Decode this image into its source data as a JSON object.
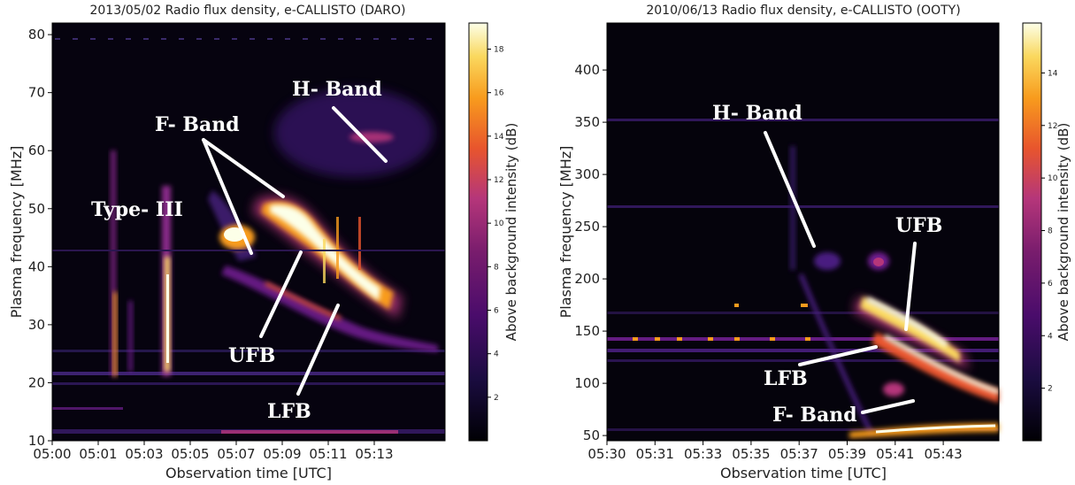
{
  "chart_data": [
    {
      "type": "heatmap",
      "title": "2013/05/02  Radio flux density, e-CALLISTO (DARO)",
      "xlabel": "Observation time [UTC]",
      "ylabel": "Plasma frequency [MHz]",
      "colorbar_label": "Above background intensity (dB)",
      "x_ticks": [
        "05:00",
        "05:01",
        "05:03",
        "05:05",
        "05:07",
        "05:09",
        "05:11",
        "05:13"
      ],
      "y_ticks": [
        10,
        20,
        30,
        40,
        50,
        60,
        70,
        80
      ],
      "colorbar_ticks": [
        2,
        4,
        6,
        8,
        10,
        12,
        14,
        16,
        18
      ],
      "ylim": [
        10,
        82
      ],
      "colormap": [
        "#000004",
        "#2b0f5c",
        "#6f1f8f",
        "#b5367a",
        "#e8552d",
        "#f89b1d",
        "#fad85e",
        "#fcffe8"
      ],
      "annotations": [
        {
          "text": "H- Band"
        },
        {
          "text": "F- Band"
        },
        {
          "text": "Type- III"
        },
        {
          "text": "UFB"
        },
        {
          "text": "LFB"
        }
      ]
    },
    {
      "type": "heatmap",
      "title": "2010/06/13  Radio flux density, e-CALLISTO (OOTY)",
      "xlabel": "Observation time [UTC]",
      "ylabel": "Plasma frequency [MHz]",
      "colorbar_label": "Above background intensity (dB)",
      "x_ticks": [
        "05:30",
        "05:31",
        "05:33",
        "05:35",
        "05:37",
        "05:39",
        "05:41",
        "05:43"
      ],
      "y_ticks": [
        50,
        100,
        150,
        200,
        250,
        300,
        350,
        400
      ],
      "colorbar_ticks": [
        2,
        4,
        6,
        8,
        10,
        12,
        14
      ],
      "ylim": [
        45,
        445
      ],
      "colormap": [
        "#000004",
        "#2b0f5c",
        "#6f1f8f",
        "#b5367a",
        "#e8552d",
        "#f89b1d",
        "#fad85e",
        "#fcffe8"
      ],
      "annotations": [
        {
          "text": "H- Band"
        },
        {
          "text": "UFB"
        },
        {
          "text": "LFB"
        },
        {
          "text": "F- Band"
        }
      ]
    }
  ]
}
